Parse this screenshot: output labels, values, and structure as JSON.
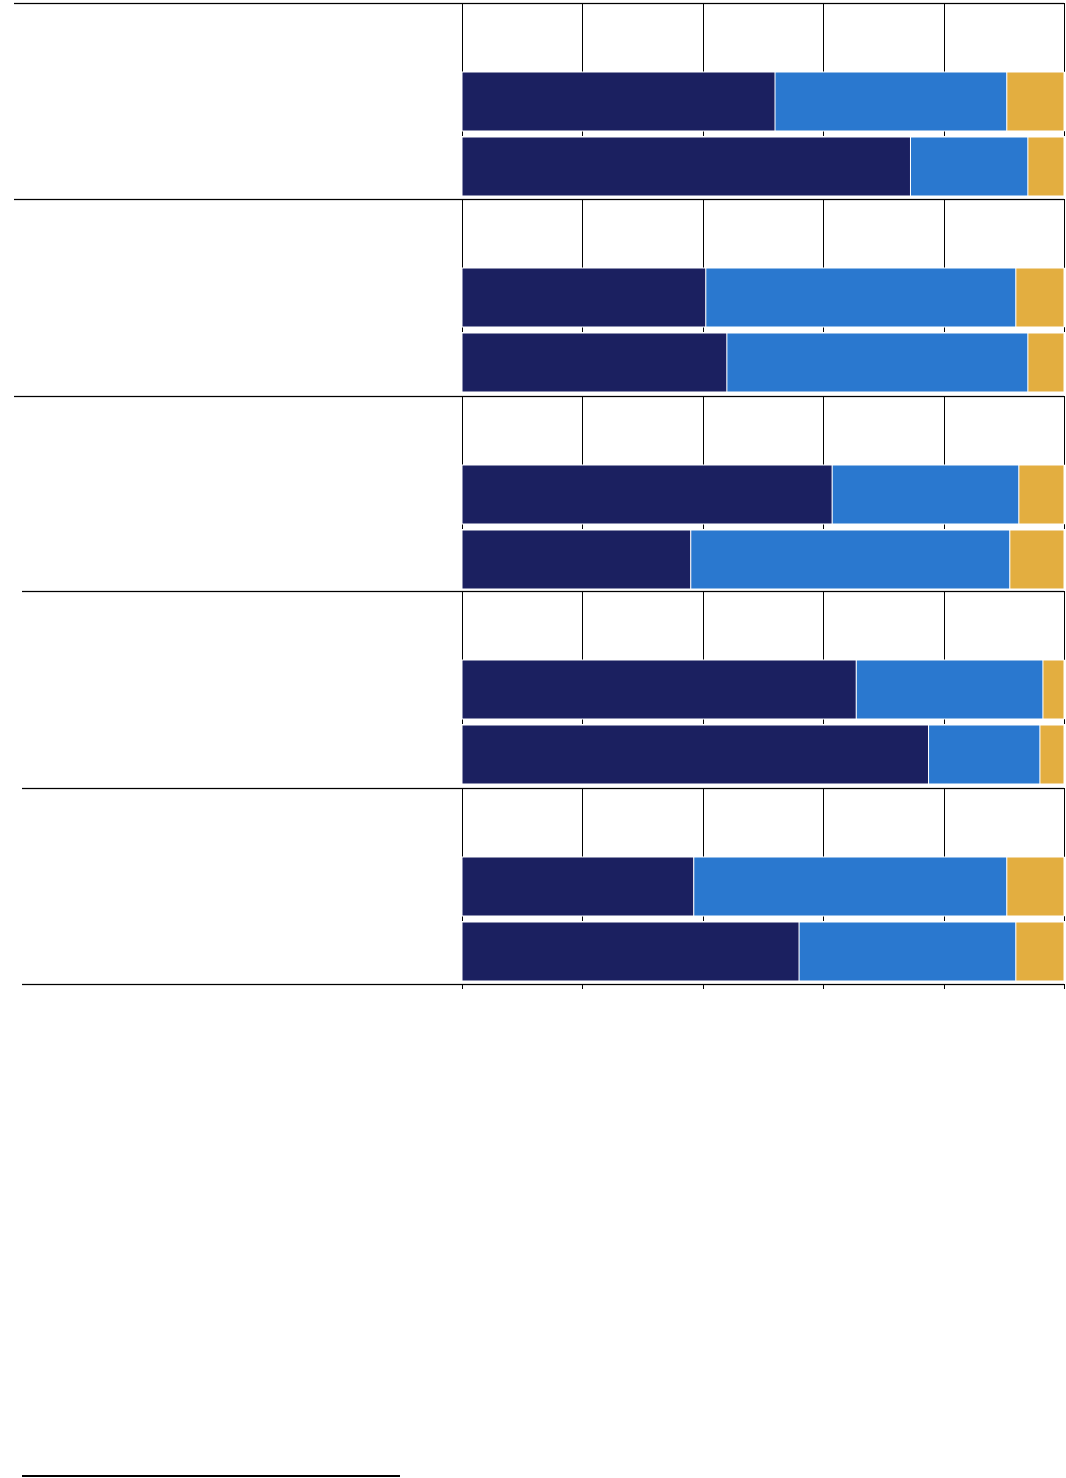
{
  "chart_data": {
    "type": "bar",
    "orientation": "horizontal",
    "stacked": true,
    "title": "",
    "xlabel": "",
    "ylabel": "",
    "xlim": [
      0,
      100
    ],
    "grid": true,
    "colors": {
      "segment_1": "#1b2060",
      "segment_2": "#2a78cf",
      "segment_3": "#e3ae40"
    },
    "groups": [
      {
        "bars": [
          {
            "values": [
              52,
              38.5,
              9.5
            ]
          },
          {
            "values": [
              74.5,
              19.5,
              6
            ]
          }
        ]
      },
      {
        "bars": [
          {
            "values": [
              40.5,
              51.5,
              8
            ]
          },
          {
            "values": [
              44,
              50,
              6
            ]
          }
        ]
      },
      {
        "bars": [
          {
            "values": [
              61.5,
              31,
              7.5
            ]
          },
          {
            "values": [
              38,
              53,
              9
            ]
          }
        ]
      },
      {
        "bars": [
          {
            "values": [
              65.5,
              31,
              3.5
            ]
          },
          {
            "values": [
              77.5,
              18.5,
              4
            ]
          }
        ]
      },
      {
        "bars": [
          {
            "values": [
              38.5,
              52,
              9.5
            ]
          },
          {
            "values": [
              56,
              36,
              8
            ]
          }
        ]
      }
    ]
  }
}
